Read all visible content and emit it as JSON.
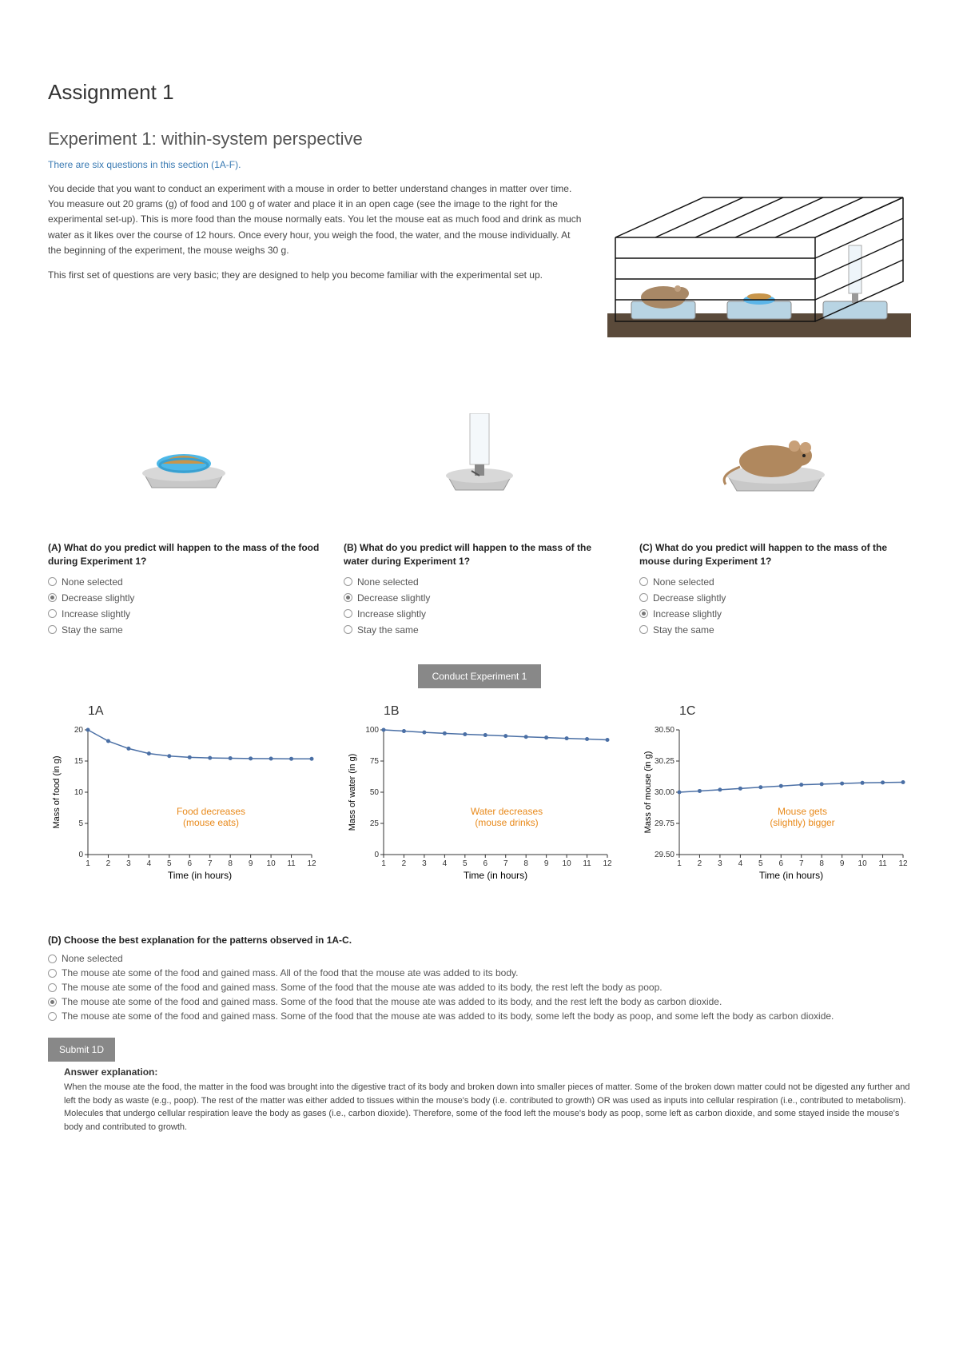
{
  "assignment_title": "Assignment 1",
  "experiment_title": "Experiment 1: within-system perspective",
  "subtitle": "There are six questions in this section (1A-F).",
  "intro_p1": "You decide that you want to conduct an experiment with a mouse in order to better understand changes in matter over time. You measure out 20 grams (g) of food and 100 g of water and place it in an open cage (see the image to the right for the experimental set-up). This is more food than the mouse normally eats. You let the mouse eat as much food and drink as much water as it likes over the course of 12 hours. Once every hour, you weigh the food, the water, and the mouse individually. At the beginning of the experiment, the mouse weighs 30 g.",
  "intro_p2": "This first set of questions are very basic; they are designed to help you become familiar with the experimental set up.",
  "questions": {
    "a": {
      "prompt": "(A) What do you predict will happen to the mass of the food during Experiment 1?",
      "options": [
        "None selected",
        "Decrease slightly",
        "Increase slightly",
        "Stay the same"
      ],
      "selected_index": 1
    },
    "b": {
      "prompt": "(B) What do you predict will happen to the mass of the water during Experiment 1?",
      "options": [
        "None selected",
        "Decrease slightly",
        "Increase slightly",
        "Stay the same"
      ],
      "selected_index": 1
    },
    "c": {
      "prompt": "(C) What do you predict will happen to the mass of the mouse during Experiment 1?",
      "options": [
        "None selected",
        "Decrease slightly",
        "Increase slightly",
        "Stay the same"
      ],
      "selected_index": 2
    },
    "d": {
      "prompt": "(D) Choose the best explanation for the patterns observed in 1A-C.",
      "options": [
        "None selected",
        "The mouse ate some of the food and gained mass. All of the food that the mouse ate was added to its body.",
        "The mouse ate some of the food and gained mass. Some of the food that the mouse ate was added to its body, the rest left the body as poop.",
        "The mouse ate some of the food and gained mass. Some of the food that the mouse ate was added to its body, and the rest left the body as carbon dioxide.",
        "The mouse ate some of the food and gained mass. Some of the food that the mouse ate was added to its body, some left the body as poop, and some left the body as carbon dioxide."
      ],
      "selected_index": 3
    }
  },
  "conduct_button": "Conduct Experiment 1",
  "submit_button": "Submit 1D",
  "explanation_title": "Answer explanation:",
  "explanation_body": "When the mouse ate the food, the matter in the food was brought into the digestive tract of its body and broken down into smaller pieces of matter. Some of the broken down matter could not be digested any further and left the body as waste (e.g., poop). The rest of the matter was either added to tissues within the mouse's body (i.e. contributed to growth) OR was used as inputs into cellular respiration (i.e., contributed to metabolism). Molecules that undergo cellular respiration leave the body as gases (i.e., carbon dioxide). Therefore, some of the food left the mouse's body as poop, some left as carbon dioxide, and some stayed inside the mouse's body and contributed to growth.",
  "charts": {
    "a": {
      "title": "1A",
      "ylabel": "Mass of food (in g)",
      "xlabel": "Time (in hours)",
      "ylim": [
        0,
        20
      ],
      "ytick_step": 5,
      "xlim": [
        1,
        12
      ],
      "values": [
        20.0,
        18.2,
        17.0,
        16.2,
        15.8,
        15.6,
        15.5,
        15.45,
        15.4,
        15.38,
        15.36,
        15.35
      ],
      "line_color": "#4a6fa5",
      "marker_color": "#4a6fa5",
      "annotation": [
        "Food decreases",
        "(mouse eats)"
      ]
    },
    "b": {
      "title": "1B",
      "ylabel": "Mass of water (in g)",
      "xlabel": "Time (in hours)",
      "ylim": [
        0,
        100
      ],
      "ytick_step": 25,
      "xlim": [
        1,
        12
      ],
      "values": [
        100,
        99,
        98,
        97.2,
        96.5,
        95.8,
        95.1,
        94.4,
        93.8,
        93.2,
        92.6,
        92.0
      ],
      "line_color": "#4a6fa5",
      "marker_color": "#4a6fa5",
      "annotation": [
        "Water decreases",
        "(mouse drinks)"
      ]
    },
    "c": {
      "title": "1C",
      "ylabel": "Mass of mouse (in g)",
      "xlabel": "Time (in hours)",
      "ylim": [
        29.5,
        30.5
      ],
      "ytick_step": 0.25,
      "xlim": [
        1,
        12
      ],
      "values": [
        30.0,
        30.01,
        30.02,
        30.03,
        30.04,
        30.05,
        30.06,
        30.065,
        30.07,
        30.075,
        30.078,
        30.08
      ],
      "line_color": "#4a6fa5",
      "marker_color": "#4a6fa5",
      "annotation": [
        "Mouse gets",
        "(slightly) bigger"
      ]
    }
  },
  "colors": {
    "annotation": "#e8891a",
    "axis": "#333333",
    "button_bg": "#888888",
    "link": "#3b7bb3"
  }
}
